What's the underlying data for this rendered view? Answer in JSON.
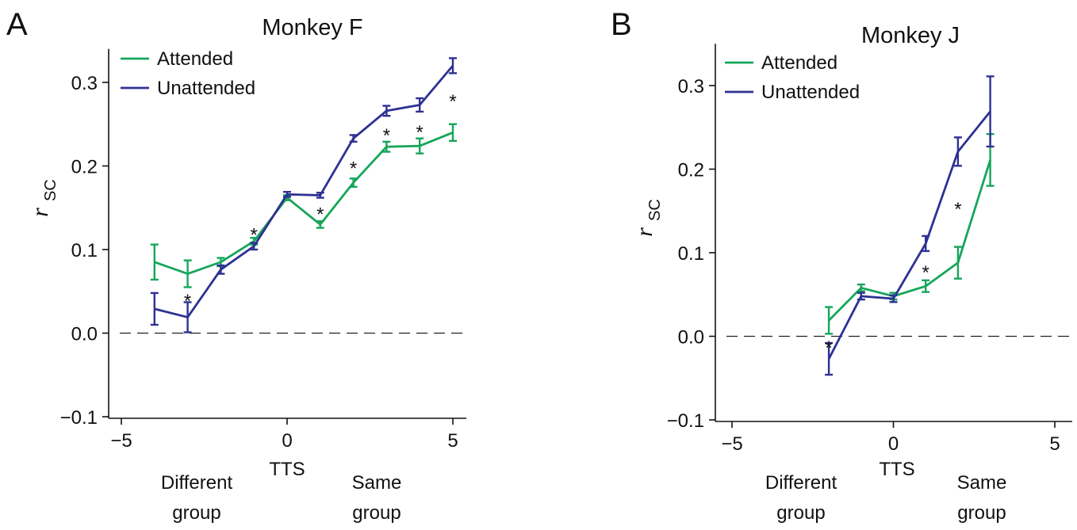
{
  "colors": {
    "attended": "#16a65a",
    "unattended": "#2e3192"
  },
  "chart_data": [
    {
      "panel": "A",
      "type": "line",
      "title": "Monkey F",
      "ylabel": "r",
      "ylabel_sub": "SC",
      "xlabel": "TTS",
      "xlim": [
        -5.3,
        5.3
      ],
      "ylim": [
        -0.1,
        0.34
      ],
      "xticks": [
        -5,
        0,
        5
      ],
      "xtick_labels": [
        "−5",
        "0",
        "5"
      ],
      "yticks": [
        -0.1,
        0.0,
        0.1,
        0.2,
        0.3
      ],
      "ytick_labels": [
        "−0.1",
        "0.0",
        "0.1",
        "0.2",
        "0.3"
      ],
      "group_labels": {
        "different": [
          "Different",
          "group"
        ],
        "same": [
          "Same",
          "group"
        ]
      },
      "legend": "top-left",
      "series": [
        {
          "name": "Attended",
          "color_key": "attended",
          "x": [
            -4,
            -3,
            -2,
            -1,
            0,
            1,
            2,
            3,
            4,
            5
          ],
          "y": [
            0.085,
            0.071,
            0.085,
            0.11,
            0.162,
            0.13,
            0.18,
            0.223,
            0.224,
            0.24
          ],
          "err": [
            0.021,
            0.016,
            0.005,
            0.004,
            0.003,
            0.004,
            0.005,
            0.006,
            0.009,
            0.01
          ]
        },
        {
          "name": "Unattended",
          "color_key": "unattended",
          "x": [
            -4,
            -3,
            -2,
            -1,
            0,
            1,
            2,
            3,
            4,
            5
          ],
          "y": [
            0.029,
            0.019,
            0.076,
            0.104,
            0.166,
            0.165,
            0.233,
            0.266,
            0.273,
            0.32
          ],
          "err": [
            0.019,
            0.018,
            0.005,
            0.004,
            0.003,
            0.003,
            0.004,
            0.006,
            0.008,
            0.009
          ]
        }
      ],
      "significance_marks": [
        {
          "x": -3,
          "y": 0.044,
          "label": "*"
        },
        {
          "x": -1,
          "y": 0.123,
          "label": "*"
        },
        {
          "x": 1,
          "y": 0.148,
          "label": "*"
        },
        {
          "x": 2,
          "y": 0.203,
          "label": "*"
        },
        {
          "x": 3,
          "y": 0.242,
          "label": "*"
        },
        {
          "x": 4,
          "y": 0.246,
          "label": "*"
        },
        {
          "x": 5,
          "y": 0.283,
          "label": "*"
        }
      ]
    },
    {
      "panel": "B",
      "type": "line",
      "title": "Monkey J",
      "ylabel": "r",
      "ylabel_sub": "SC",
      "xlabel": "TTS",
      "xlim": [
        -5.4,
        5.4
      ],
      "ylim": [
        -0.1,
        0.35
      ],
      "xticks": [
        -5,
        0,
        5
      ],
      "xtick_labels": [
        "−5",
        "0",
        "5"
      ],
      "yticks": [
        -0.1,
        0.0,
        0.1,
        0.2,
        0.3
      ],
      "ytick_labels": [
        "−0.1",
        "0.0",
        "0.1",
        "0.2",
        "0.3"
      ],
      "group_labels": {
        "different": [
          "Different",
          "group"
        ],
        "same": [
          "Same",
          "group"
        ]
      },
      "legend": "top-left",
      "series": [
        {
          "name": "Attended",
          "color_key": "attended",
          "x": [
            -2,
            -1,
            0,
            1,
            2,
            3
          ],
          "y": [
            0.019,
            0.058,
            0.048,
            0.06,
            0.088,
            0.211
          ],
          "err": [
            0.016,
            0.004,
            0.004,
            0.007,
            0.019,
            0.031
          ]
        },
        {
          "name": "Unattended",
          "color_key": "unattended",
          "x": [
            -2,
            -1,
            0,
            1,
            2,
            3
          ],
          "y": [
            -0.027,
            0.048,
            0.045,
            0.111,
            0.221,
            0.269
          ],
          "err": [
            0.019,
            0.004,
            0.004,
            0.009,
            0.017,
            0.042
          ]
        }
      ],
      "significance_marks": [
        {
          "x": -2,
          "y": -0.008,
          "label": "*"
        },
        {
          "x": 1,
          "y": 0.082,
          "label": "*"
        },
        {
          "x": 2,
          "y": 0.158,
          "label": "*"
        }
      ]
    }
  ]
}
